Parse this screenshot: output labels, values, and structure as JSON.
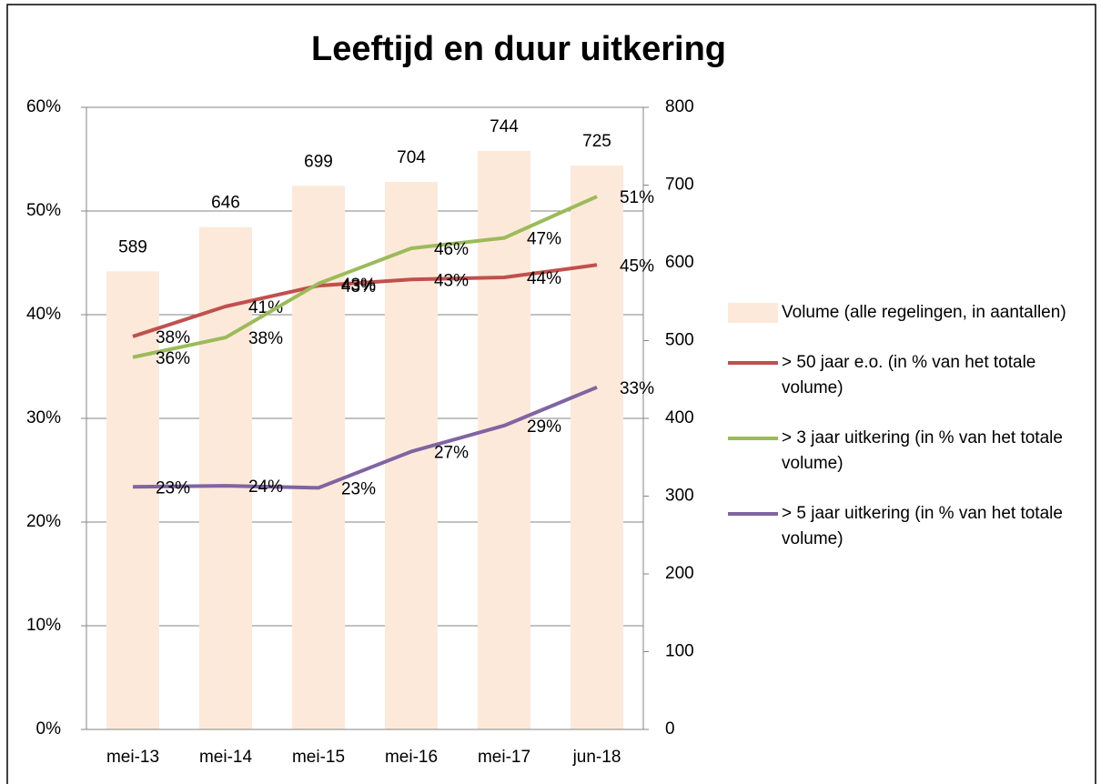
{
  "chart_data": {
    "type": "bar-line",
    "title": "Leeftijd en duur uitkering",
    "categories": [
      "mei-13",
      "mei-14",
      "mei-15",
      "mei-16",
      "mei-17",
      "jun-18"
    ],
    "series": [
      {
        "name": "Volume (alle regelingen, in aantallen)",
        "type": "bar",
        "axis": "y2",
        "color": "#fde9d9",
        "values": [
          589,
          646,
          699,
          704,
          744,
          725
        ]
      },
      {
        "name": "> 50 jaar e.o. (in % van het totale volume)",
        "type": "line",
        "axis": "y",
        "color": "#c0504d",
        "values": [
          37.9,
          40.8,
          42.8,
          43.4,
          43.6,
          44.8
        ],
        "value_labels": [
          "38%",
          "41%",
          "43%",
          "43%",
          "44%",
          "45%"
        ]
      },
      {
        "name": "> 3 jaar uitkering (in % van het totale volume)",
        "type": "line",
        "axis": "y",
        "color": "#9bbb59",
        "values": [
          35.9,
          37.8,
          43.0,
          46.4,
          47.4,
          51.4
        ],
        "value_labels": [
          "36%",
          "38%",
          "43%",
          "46%",
          "47%",
          "51%"
        ]
      },
      {
        "name": "> 5 jaar uitkering (in % van het totale volume)",
        "type": "line",
        "axis": "y",
        "color": "#8064a2",
        "values": [
          23.4,
          23.5,
          23.3,
          26.8,
          29.3,
          33.0
        ],
        "value_labels": [
          "23%",
          "24%",
          "23%",
          "27%",
          "29%",
          "33%"
        ]
      }
    ],
    "ylim": [
      0,
      60
    ],
    "yticks": [
      {
        "value": 0,
        "label": "0%"
      },
      {
        "value": 10,
        "label": "10%"
      },
      {
        "value": 20,
        "label": "20%"
      },
      {
        "value": 30,
        "label": "30%"
      },
      {
        "value": 40,
        "label": "40%"
      },
      {
        "value": 50,
        "label": "50%"
      },
      {
        "value": 60,
        "label": "60%"
      }
    ],
    "y2lim": [
      0,
      800
    ],
    "y2ticks": [
      0,
      100,
      200,
      300,
      400,
      500,
      600,
      700,
      800
    ],
    "grid": true,
    "legend": "right"
  }
}
